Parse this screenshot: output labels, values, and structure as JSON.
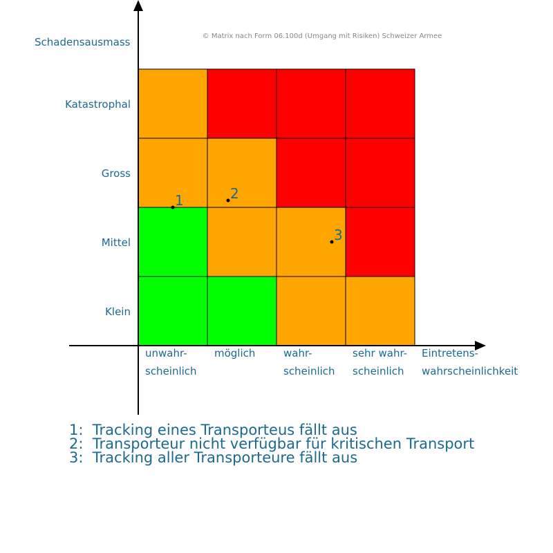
{
  "copyright": "© Matrix nach Form 06.100d (Umgang mit Risiken) Schweizer Armee",
  "y_axis_title": "Schadensausmass",
  "x_axis_title": [
    "Eintretens-",
    "wahrscheinlichkeit"
  ],
  "y_levels": [
    "Klein",
    "Mittel",
    "Gross",
    "Katastrophal"
  ],
  "x_levels": [
    [
      "unwahr-",
      "scheinlich"
    ],
    [
      "möglich"
    ],
    [
      "wahr-",
      "scheinlich"
    ],
    [
      "sehr wahr-",
      "scheinlich"
    ]
  ],
  "colors": {
    "green": "#00ff00",
    "orange": "#ffa500",
    "red": "#ff0000",
    "text": "#1a6a8f",
    "axis": "#000000"
  },
  "grid": [
    [
      "green",
      "green",
      "orange",
      "orange"
    ],
    [
      "green",
      "orange",
      "orange",
      "red"
    ],
    [
      "orange",
      "orange",
      "red",
      "red"
    ],
    [
      "orange",
      "red",
      "red",
      "red"
    ]
  ],
  "points": [
    {
      "label": "1",
      "x": 0.5,
      "y": 2.0
    },
    {
      "label": "2",
      "x": 1.3,
      "y": 2.1
    },
    {
      "label": "3",
      "x": 2.8,
      "y": 1.5
    }
  ],
  "legend": [
    {
      "num": "1:",
      "text": "Tracking eines Transporteus fällt aus"
    },
    {
      "num": "2:",
      "text": "Transporteur nicht verfügbar für kritischen Transport"
    },
    {
      "num": "3:",
      "text": "Tracking aller Transporteure fällt aus"
    }
  ]
}
